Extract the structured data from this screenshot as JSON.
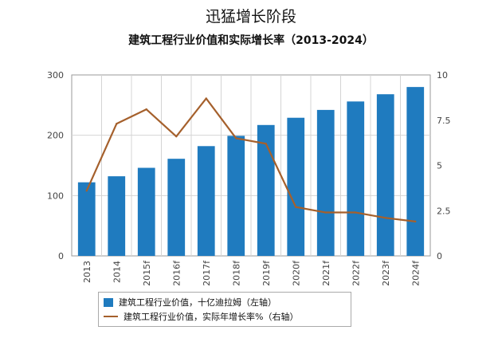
{
  "headline": "迅猛增长阶段",
  "colors": {
    "bar": "#1f7bbf",
    "line": "#a5602c",
    "grid": "#d4d4d4",
    "axis": "#9a9a9a"
  },
  "chart_data": {
    "type": "bar",
    "title": "建筑工程行业价值和实际增长率（2013-2024）",
    "categories": [
      "2013",
      "2014",
      "2015f",
      "2016f",
      "2017f",
      "2018f",
      "2019f",
      "2020f",
      "2021f",
      "2022f",
      "2023f",
      "2024f"
    ],
    "series": [
      {
        "name": "建筑工程行业价值，十亿迪拉姆（左轴）",
        "type": "bar",
        "axis": "left",
        "values": [
          122,
          132,
          146,
          161,
          182,
          199,
          217,
          229,
          242,
          256,
          268,
          280
        ]
      },
      {
        "name": "建筑工程行业价值，实际年增长率%（右轴）",
        "type": "line",
        "axis": "right",
        "values": [
          3.6,
          7.3,
          8.1,
          6.6,
          8.7,
          6.5,
          6.2,
          2.7,
          2.4,
          2.4,
          2.1,
          1.9
        ]
      }
    ],
    "ylim_left": [
      0,
      300
    ],
    "yticks_left": [
      0,
      100,
      200,
      300
    ],
    "ylim_right": [
      0,
      10
    ],
    "yticks_right": [
      "0",
      "2.5",
      "5",
      "7.5",
      "10"
    ],
    "ytick_values_right": [
      0,
      2.5,
      5,
      7.5,
      10
    ],
    "grid": true,
    "legend_position": "bottom"
  }
}
